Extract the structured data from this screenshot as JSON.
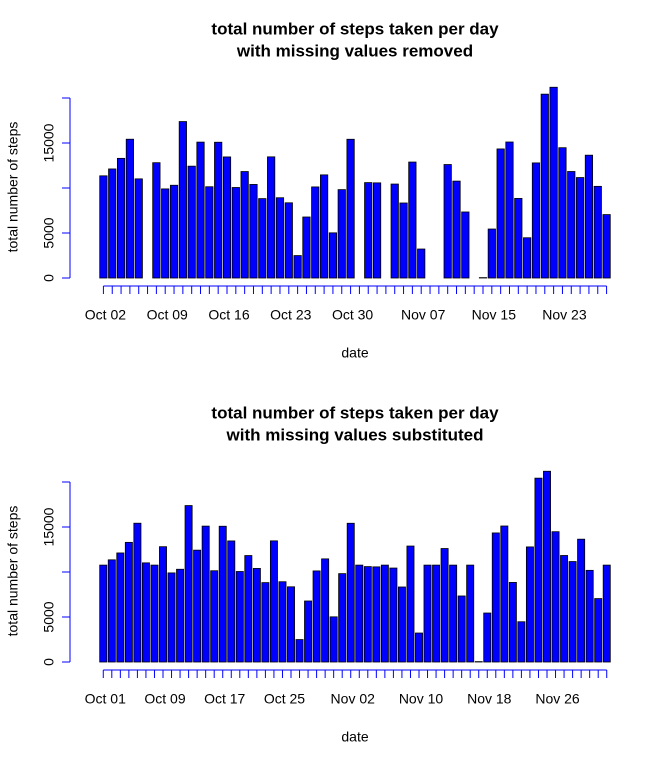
{
  "chart_data": [
    {
      "type": "bar",
      "title": [
        "total number of steps taken per day",
        "with missing values removed"
      ],
      "xlabel": "date",
      "ylabel": "total number of steps",
      "color": "#0000ff",
      "axis_color": "#0000ff",
      "categories": [
        "Oct 02",
        null,
        null,
        null,
        null,
        null,
        null,
        "Oct 09",
        null,
        null,
        null,
        null,
        null,
        null,
        "Oct 16",
        null,
        null,
        null,
        null,
        null,
        null,
        "Oct 23",
        null,
        null,
        null,
        null,
        null,
        null,
        "Oct 30",
        null,
        null,
        null,
        null,
        null,
        null,
        null,
        "Nov 07",
        null,
        null,
        null,
        null,
        null,
        null,
        null,
        "Nov 15",
        null,
        null,
        null,
        null,
        null,
        null,
        null,
        "Nov 23",
        null,
        null,
        null,
        null,
        null
      ],
      "values": [
        11352,
        12116,
        13294,
        15420,
        11015,
        0,
        12811,
        9900,
        10304,
        17382,
        12426,
        15098,
        10139,
        15084,
        13452,
        10056,
        11829,
        10395,
        8821,
        13460,
        8918,
        8355,
        2492,
        6778,
        10119,
        11458,
        5018,
        9819,
        15414,
        0,
        10600,
        10571,
        0,
        10439,
        8334,
        12883,
        3219,
        0,
        0,
        12608,
        10765,
        7336,
        0,
        41,
        5441,
        14339,
        15110,
        8841,
        4472,
        12787,
        20427,
        21194,
        14478,
        11834,
        11162,
        13646,
        10183,
        7047
      ],
      "ylim": [
        0,
        22000
      ],
      "yticks": [
        0,
        5000,
        {
          "value": 10000,
          "label": null
        },
        15000,
        {
          "value": 20000,
          "label": null
        }
      ]
    },
    {
      "type": "bar",
      "title": [
        "total number of steps taken per day",
        "with missing values substituted"
      ],
      "xlabel": "date",
      "ylabel": "total number of steps",
      "color": "#0000ff",
      "axis_color": "#0000ff",
      "categories": [
        "Oct 01",
        null,
        null,
        null,
        null,
        null,
        null,
        "Oct 09",
        null,
        null,
        null,
        null,
        null,
        null,
        "Oct 17",
        null,
        null,
        null,
        null,
        null,
        null,
        "Oct 25",
        null,
        null,
        null,
        null,
        null,
        null,
        null,
        "Nov 02",
        null,
        null,
        null,
        null,
        null,
        null,
        null,
        "Nov 10",
        null,
        null,
        null,
        null,
        null,
        null,
        null,
        "Nov 18",
        null,
        null,
        null,
        null,
        null,
        null,
        null,
        "Nov 26",
        null,
        null,
        null,
        null,
        null,
        null
      ],
      "values": [
        10766,
        11352,
        12116,
        13294,
        15420,
        11015,
        10766,
        12811,
        9900,
        10304,
        17382,
        12426,
        15098,
        10139,
        15084,
        13452,
        10056,
        11829,
        10395,
        8821,
        13460,
        8918,
        8355,
        2492,
        6778,
        10119,
        11458,
        5018,
        9819,
        15414,
        10766,
        10600,
        10571,
        10766,
        10439,
        8334,
        12883,
        3219,
        10766,
        10766,
        12608,
        10765,
        7336,
        10766,
        41,
        5441,
        14339,
        15110,
        8841,
        4472,
        12787,
        20427,
        21194,
        14478,
        11834,
        11162,
        13646,
        10183,
        7047,
        10766
      ],
      "ylim": [
        0,
        22000
      ],
      "yticks": [
        0,
        5000,
        {
          "value": 10000,
          "label": null
        },
        15000,
        {
          "value": 20000,
          "label": null
        }
      ]
    }
  ]
}
